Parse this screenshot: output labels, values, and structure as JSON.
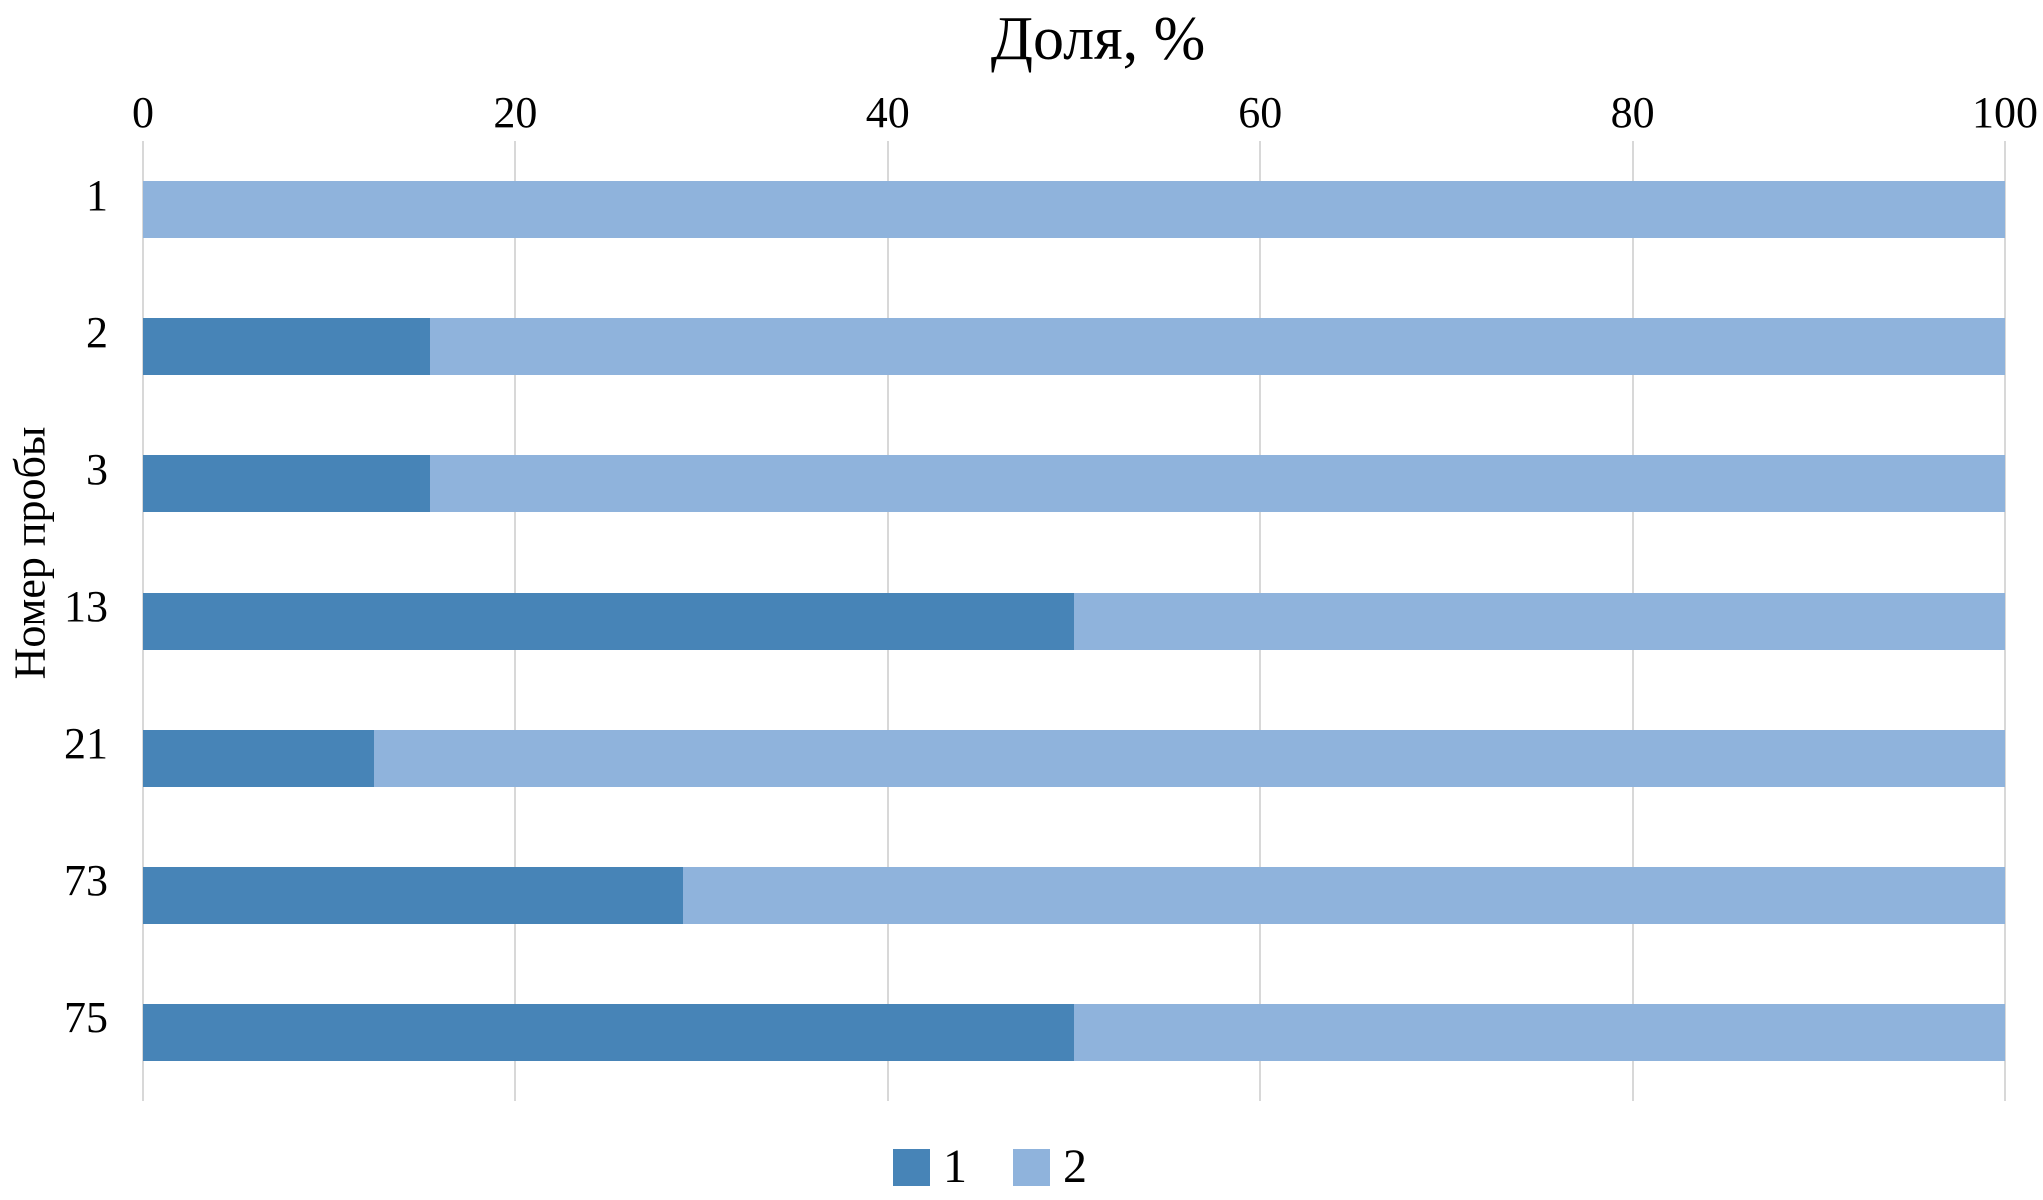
{
  "chart": {
    "title": "Доля, %",
    "y_axis_title": "Номер пробы"
  },
  "chart_data": {
    "type": "bar",
    "orientation": "horizontal",
    "stacked": true,
    "title": "Доля, %",
    "xlabel": "Доля, %",
    "ylabel": "Номер пробы",
    "categories": [
      "1",
      "2",
      "3",
      "13",
      "21",
      "73",
      "75"
    ],
    "series": [
      {
        "name": "1",
        "color": "#4784B7",
        "values": [
          0,
          15.4,
          15.4,
          50,
          12.4,
          29,
          50
        ]
      },
      {
        "name": "2",
        "color": "#8FB3DC",
        "values": [
          100,
          84.6,
          84.6,
          50,
          87.6,
          71,
          50
        ]
      }
    ],
    "x_ticks": [
      0,
      20,
      40,
      60,
      80,
      100
    ],
    "xlim": [
      0,
      100
    ],
    "grid": true,
    "gridline_color": "#D8D8D8",
    "legend_position": "bottom",
    "legend": [
      {
        "label": "1",
        "color": "#4784B7"
      },
      {
        "label": "2",
        "color": "#8FB3DC"
      }
    ]
  }
}
